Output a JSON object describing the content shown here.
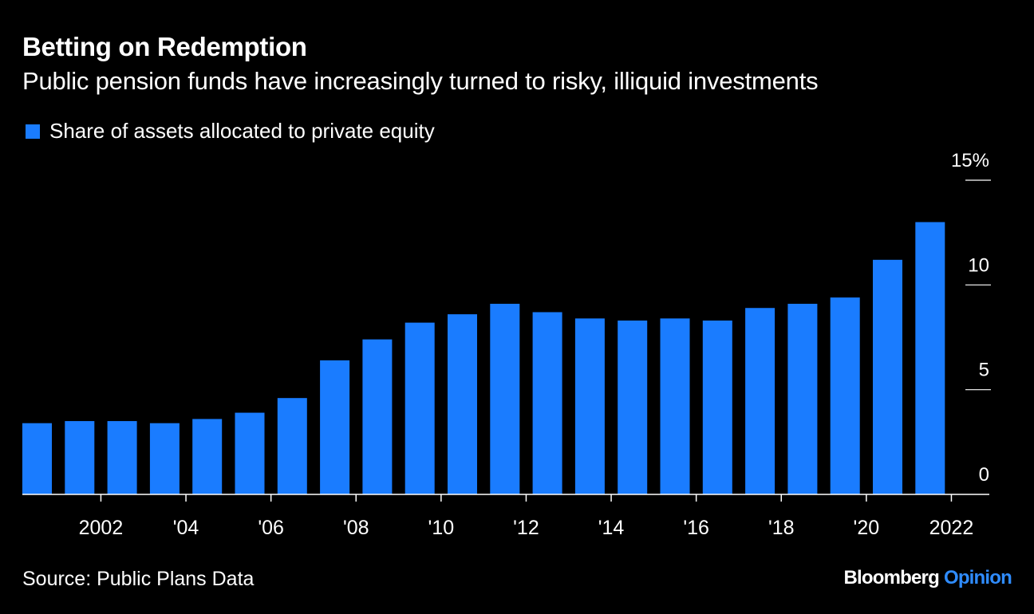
{
  "header": {
    "title": "Betting on Redemption",
    "subtitle": "Public pension funds have increasingly turned to risky, illiquid investments"
  },
  "legend": {
    "label": "Share of assets allocated to private equity"
  },
  "footer": {
    "source": "Source: Public Plans Data",
    "brand_main": "Bloomberg",
    "brand_accent": "Opinion"
  },
  "colors": {
    "background": "#000000",
    "bar": "#1a7cff",
    "text": "#ffffff",
    "brand_accent": "#2f8cff"
  },
  "chart_data": {
    "type": "bar",
    "title": "Betting on Redemption",
    "subtitle": "Public pension funds have increasingly turned to risky, illiquid investments",
    "xlabel": "",
    "ylabel": "",
    "ylim": [
      0,
      15
    ],
    "grid": false,
    "legend_position": "top-left",
    "series": [
      {
        "name": "Share of assets allocated to private equity",
        "values": [
          3.4,
          3.5,
          3.5,
          3.4,
          3.6,
          3.9,
          4.6,
          6.4,
          7.4,
          8.2,
          8.6,
          9.1,
          8.7,
          8.4,
          8.3,
          8.4,
          8.3,
          8.9,
          9.1,
          9.4,
          11.2,
          13.0
        ]
      }
    ],
    "categories": [
      "2001",
      "2002",
      "2003",
      "2004",
      "2005",
      "2006",
      "2007",
      "2008",
      "2009",
      "2010",
      "2011",
      "2012",
      "2013",
      "2014",
      "2015",
      "2016",
      "2017",
      "2018",
      "2019",
      "2020",
      "2021",
      "2022"
    ],
    "x_tick_labels": [
      "2002",
      "'04",
      "'06",
      "'08",
      "'10",
      "'12",
      "'14",
      "'16",
      "'18",
      "'20",
      "2022"
    ],
    "x_tick_years": [
      "2002",
      "2004",
      "2006",
      "2008",
      "2010",
      "2012",
      "2014",
      "2016",
      "2018",
      "2020",
      "2022"
    ],
    "y_ticks": [
      0,
      5,
      10,
      15
    ],
    "y_tick_labels": [
      "0",
      "5",
      "10",
      "15%"
    ]
  }
}
